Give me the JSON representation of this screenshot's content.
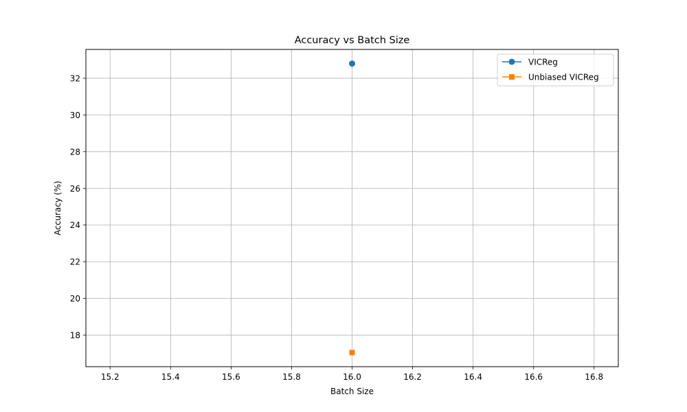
{
  "chart_data": {
    "type": "line",
    "title": "Accuracy vs Batch Size",
    "xlabel": "Batch Size",
    "ylabel": "Accuracy (%)",
    "xlim": [
      15.12,
      16.88
    ],
    "ylim": [
      16.28,
      33.57
    ],
    "xticks": [
      15.2,
      15.4,
      15.6,
      15.8,
      16.0,
      16.2,
      16.4,
      16.6,
      16.8
    ],
    "xtick_labels": [
      "15.2",
      "15.4",
      "15.6",
      "15.8",
      "16.0",
      "16.2",
      "16.4",
      "16.6",
      "16.8"
    ],
    "yticks": [
      18,
      20,
      22,
      24,
      26,
      28,
      30,
      32
    ],
    "ytick_labels": [
      "18",
      "20",
      "22",
      "24",
      "26",
      "28",
      "30",
      "32"
    ],
    "grid": true,
    "legend_position": "top-right",
    "series": [
      {
        "name": "VICReg",
        "color": "#1f77b4",
        "marker": "circle",
        "x": [
          16
        ],
        "y": [
          32.8
        ]
      },
      {
        "name": "Unbiased VICReg",
        "color": "#ff7f0e",
        "marker": "square",
        "x": [
          16
        ],
        "y": [
          17.05
        ]
      }
    ]
  }
}
